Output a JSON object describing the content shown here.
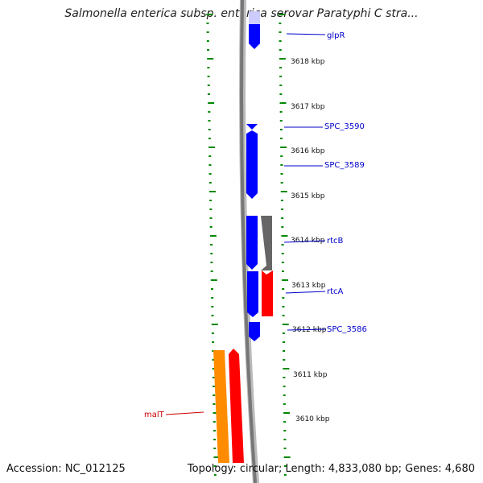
{
  "title": "Salmonella enterica subsp. enterica serovar Paratyphi C stra...",
  "footer": {
    "accession": "Accession: NC_012125",
    "summary": "Topology: circular; Length: 4,833,080 bp; Genes: 4,680"
  },
  "ruler_labels": [
    "3618 kbp",
    "3617 kbp",
    "3616 kbp",
    "3615 kbp",
    "3614 kbp",
    "3613 kbp",
    "3612 kbp",
    "3611 kbp",
    "3610 kbp"
  ],
  "genes": [
    {
      "name": "glpR",
      "color": "#0000cc"
    },
    {
      "name": "SPC_3590",
      "color": "#0000cc"
    },
    {
      "name": "SPC_3589",
      "color": "#0000cc"
    },
    {
      "name": "rtcB",
      "color": "#0000cc"
    },
    {
      "name": "rtcA",
      "color": "#0000cc"
    },
    {
      "name": "SPC_3586",
      "color": "#0000cc"
    },
    {
      "name": "malT",
      "color": "#cc0000"
    }
  ],
  "colors": {
    "blue_feature": "#0000ff",
    "gray_feature": "#666666",
    "red_feature": "#ff0000",
    "orange_feature": "#ff8c00",
    "tick_green": "#008800",
    "backbone": "#888888"
  }
}
